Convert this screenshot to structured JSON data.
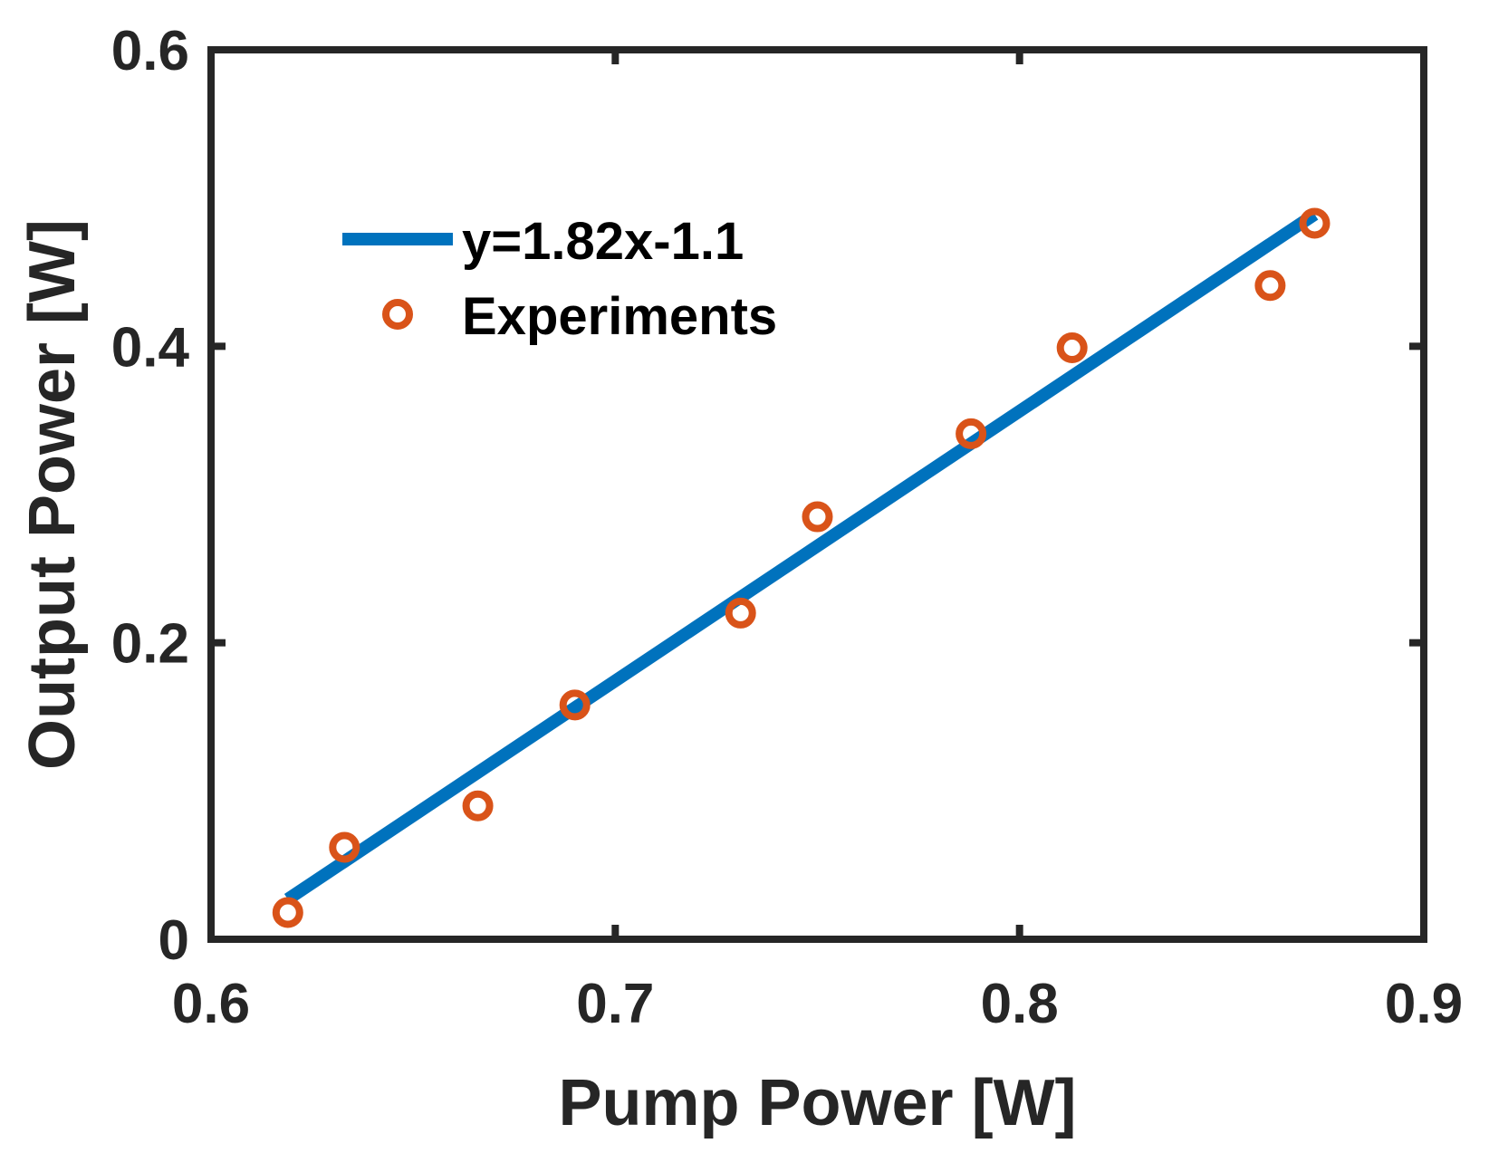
{
  "chart_data": {
    "type": "scatter",
    "title": "",
    "xlabel": "Pump Power [W]",
    "ylabel": "Output Power [W]",
    "xlim": [
      0.6,
      0.9
    ],
    "ylim": [
      0,
      0.6
    ],
    "xticks": [
      0.6,
      0.7,
      0.8,
      0.9
    ],
    "xtick_labels": [
      "0.6",
      "0.7",
      "0.8",
      "0.9"
    ],
    "yticks": [
      0,
      0.2,
      0.4,
      0.6
    ],
    "ytick_labels": [
      "0",
      "0.2",
      "0.4",
      "0.6"
    ],
    "grid": false,
    "legend_position": "top-left",
    "series": [
      {
        "name": "y=1.82x-1.1",
        "kind": "line",
        "color": "#0072BD",
        "x": [
          0.619,
          0.873
        ],
        "y": [
          0.027,
          0.489
        ]
      },
      {
        "name": "Experiments",
        "kind": "scatter",
        "marker": "circle-open",
        "color": "#D95319",
        "x": [
          0.619,
          0.633,
          0.666,
          0.69,
          0.731,
          0.75,
          0.788,
          0.813,
          0.862,
          0.873
        ],
        "y": [
          0.018,
          0.062,
          0.09,
          0.158,
          0.22,
          0.285,
          0.341,
          0.399,
          0.441,
          0.483
        ]
      }
    ]
  }
}
